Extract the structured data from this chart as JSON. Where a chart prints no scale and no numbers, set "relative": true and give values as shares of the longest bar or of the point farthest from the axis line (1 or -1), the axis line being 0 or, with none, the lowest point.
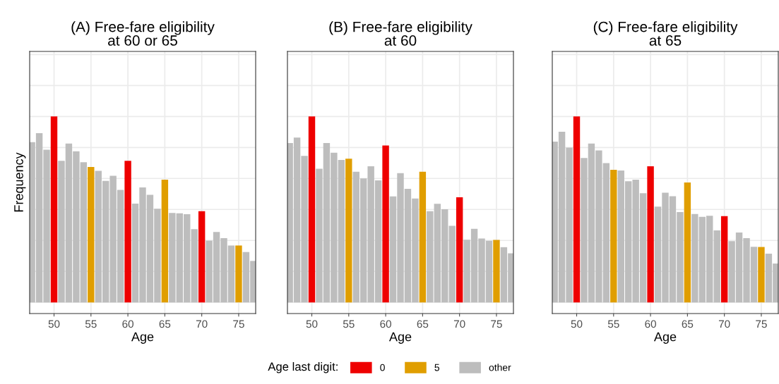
{
  "chart_data": [
    {
      "type": "bar",
      "title": "(A) Free-fare eligibility\nat 60 or 65",
      "xlabel": "Age",
      "ylabel": "Frequency",
      "relative": true,
      "xlim": [
        46.7,
        77.3
      ],
      "xticks": [
        50,
        55,
        60,
        65,
        70,
        75
      ],
      "tick_labels": "x",
      "grid": true,
      "legend": "bottom",
      "legend_title": "Age last digit:",
      "series": [
        {
          "name": "0",
          "color": "#ee0000",
          "x": [
            50,
            60,
            70
          ],
          "values": [
            1,
            0.762,
            0.491
          ]
        },
        {
          "name": "5",
          "color": "#e09e00",
          "x": [
            55,
            65,
            75
          ],
          "values": [
            0.728,
            0.66,
            0.306
          ]
        },
        {
          "name": "other",
          "color": "#bdbdbd",
          "x": [
            47,
            48,
            49,
            51,
            52,
            53,
            54,
            56,
            57,
            58,
            59,
            61,
            62,
            63,
            64,
            66,
            67,
            68,
            69,
            71,
            72,
            73,
            74,
            76,
            77
          ],
          "values": [
            0.862,
            0.91,
            0.821,
            0.762,
            0.854,
            0.813,
            0.754,
            0.708,
            0.654,
            0.681,
            0.605,
            0.531,
            0.618,
            0.579,
            0.504,
            0.481,
            0.479,
            0.474,
            0.394,
            0.332,
            0.379,
            0.346,
            0.306,
            0.271,
            0.223
          ]
        }
      ]
    },
    {
      "type": "bar",
      "title": "(B) Free-fare eligibility\nat 60",
      "xlabel": "Age",
      "relative": true,
      "xlim": [
        46.7,
        77.3
      ],
      "xticks": [
        50,
        55,
        60,
        65,
        70,
        75
      ],
      "tick_labels": "x",
      "grid": true,
      "series": [
        {
          "color": "#ee0000",
          "x": [
            50,
            60,
            70
          ],
          "values": [
            1,
            0.844,
            0.565
          ]
        },
        {
          "color": "#e09e00",
          "x": [
            55,
            65,
            75
          ],
          "values": [
            0.773,
            0.703,
            0.336
          ]
        },
        {
          "color": "#bdbdbd",
          "x": [
            47,
            48,
            49,
            51,
            52,
            53,
            54,
            56,
            57,
            58,
            59,
            61,
            62,
            63,
            64,
            66,
            67,
            68,
            69,
            71,
            72,
            73,
            74,
            76,
            77
          ],
          "values": [
            0.857,
            0.887,
            0.788,
            0.719,
            0.857,
            0.805,
            0.766,
            0.703,
            0.667,
            0.732,
            0.656,
            0.57,
            0.695,
            0.611,
            0.559,
            0.491,
            0.53,
            0.501,
            0.412,
            0.337,
            0.396,
            0.344,
            0.331,
            0.297,
            0.264
          ]
        }
      ]
    },
    {
      "type": "bar",
      "title": "(C) Free-fare eligibility\nat 65",
      "xlabel": "Age",
      "relative": true,
      "xlim": [
        46.7,
        77.3
      ],
      "xticks": [
        50,
        55,
        60,
        65,
        70,
        75
      ],
      "tick_labels": "x",
      "grid": true,
      "series": [
        {
          "color": "#ee0000",
          "x": [
            50,
            60,
            70
          ],
          "values": [
            1,
            0.732,
            0.464
          ]
        },
        {
          "color": "#e09e00",
          "x": [
            55,
            65,
            75
          ],
          "values": [
            0.713,
            0.645,
            0.298
          ]
        },
        {
          "color": "#bdbdbd",
          "x": [
            47,
            48,
            49,
            51,
            52,
            53,
            54,
            56,
            57,
            58,
            59,
            61,
            62,
            63,
            64,
            66,
            67,
            68,
            69,
            71,
            72,
            73,
            74,
            76,
            77
          ],
          "values": [
            0.865,
            0.918,
            0.833,
            0.777,
            0.854,
            0.817,
            0.749,
            0.709,
            0.652,
            0.66,
            0.587,
            0.515,
            0.59,
            0.571,
            0.486,
            0.475,
            0.46,
            0.466,
            0.387,
            0.329,
            0.376,
            0.346,
            0.299,
            0.262,
            0.209
          ]
        }
      ]
    }
  ]
}
